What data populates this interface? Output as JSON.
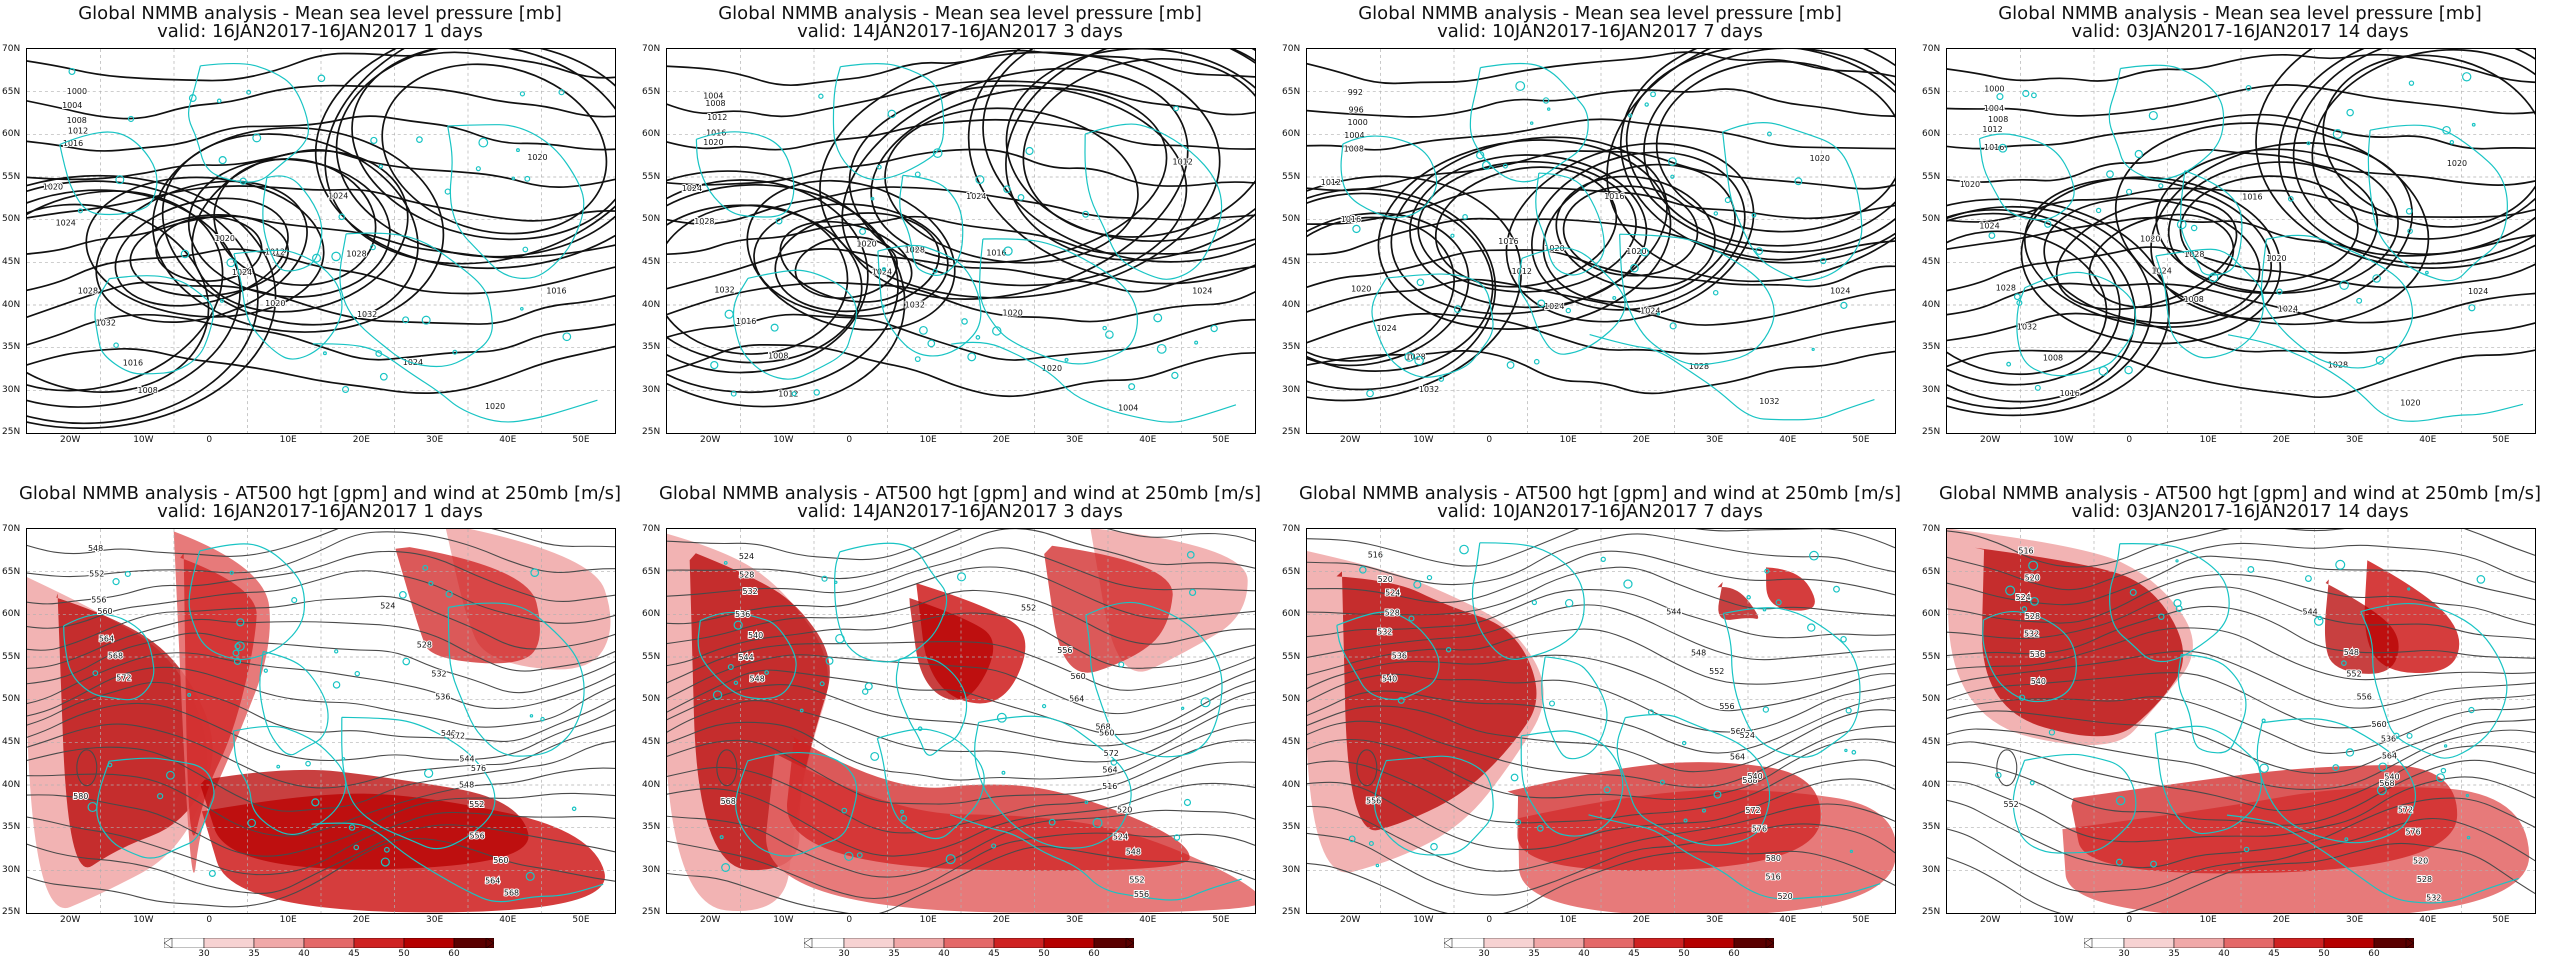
{
  "colors": {
    "coast": "#19c4c4",
    "contour": "#111111",
    "grid": "#b0b0b0",
    "wind_scale": [
      "#ffffff",
      "#f7d2d2",
      "#f0a8a8",
      "#e46868",
      "#cf2222",
      "#b50000",
      "#5a0000"
    ]
  },
  "axes": {
    "lat_labels": [
      "70N",
      "65N",
      "60N",
      "55N",
      "50N",
      "45N",
      "40N",
      "35N",
      "30N",
      "25N"
    ],
    "lon_labels": [
      "20W",
      "10W",
      "0",
      "10E",
      "20E",
      "30E",
      "40E",
      "50E"
    ]
  },
  "panels": [
    {
      "id": "mslp-1",
      "row": 0,
      "col": 0,
      "type": "mslp",
      "title": "Global NMMB analysis - Mean sea level pressure [mb]",
      "subtitle": "valid: 16JAN2017-16JAN2017   1 days",
      "labels": [
        "1000",
        "1004",
        "1008",
        "1012",
        "1016",
        "1020",
        "1024",
        "1028",
        "1032",
        "1016",
        "1008",
        "1020",
        "1024",
        "1012",
        "1020",
        "1024",
        "1028",
        "1032",
        "1024",
        "1020",
        "1020",
        "1016"
      ]
    },
    {
      "id": "mslp-3",
      "row": 0,
      "col": 1,
      "type": "mslp",
      "title": "Global NMMB analysis - Mean sea level pressure [mb]",
      "subtitle": "valid: 14JAN2017-16JAN2017   3 days",
      "labels": [
        "1004",
        "1008",
        "1012",
        "1016",
        "1020",
        "1024",
        "1028",
        "1032",
        "1016",
        "1008",
        "1012",
        "1020",
        "1024",
        "1028",
        "1032",
        "1024",
        "1016",
        "1020",
        "1020",
        "1004",
        "1012",
        "1024"
      ]
    },
    {
      "id": "mslp-7",
      "row": 0,
      "col": 2,
      "type": "mslp",
      "title": "Global NMMB analysis - Mean sea level pressure [mb]",
      "subtitle": "valid: 10JAN2017-16JAN2017   7 days",
      "labels": [
        "992",
        "996",
        "1000",
        "1004",
        "1008",
        "1012",
        "1016",
        "1020",
        "1024",
        "1028",
        "1032",
        "1016",
        "1012",
        "1020",
        "1024",
        "1016",
        "1020",
        "1024",
        "1028",
        "1032",
        "1020",
        "1024"
      ]
    },
    {
      "id": "mslp-14",
      "row": 0,
      "col": 3,
      "type": "mslp",
      "title": "Global NMMB analysis - Mean sea level pressure [mb]",
      "subtitle": "valid: 03JAN2017-16JAN2017   14 days",
      "labels": [
        "1000",
        "1004",
        "1008",
        "1012",
        "1016",
        "1020",
        "1024",
        "1028",
        "1032",
        "1008",
        "1016",
        "1020",
        "1024",
        "1028",
        "1008",
        "1016",
        "1020",
        "1024",
        "1028",
        "1020",
        "1020",
        "1024"
      ]
    },
    {
      "id": "z500-1",
      "row": 1,
      "col": 0,
      "type": "z500",
      "title": "Global NMMB analysis - AT500 hgt [gpm] and wind at 250mb [m/s]",
      "subtitle": "valid: 16JAN2017-16JAN2017   1 days",
      "labels": [
        "548",
        "552",
        "556",
        "560",
        "564",
        "568",
        "572",
        "524",
        "528",
        "532",
        "536",
        "540",
        "544",
        "548",
        "552",
        "556",
        "560",
        "564",
        "568",
        "572",
        "576",
        "580"
      ],
      "colorbar_labels": [
        "30",
        "35",
        "40",
        "45",
        "50",
        "60"
      ]
    },
    {
      "id": "z500-3",
      "row": 1,
      "col": 1,
      "type": "z500",
      "title": "Global NMMB analysis - AT500 hgt [gpm] and wind at 250mb [m/s]",
      "subtitle": "valid: 14JAN2017-16JAN2017   3 days",
      "labels": [
        "524",
        "528",
        "532",
        "536",
        "540",
        "544",
        "548",
        "552",
        "556",
        "560",
        "564",
        "568",
        "572",
        "516",
        "520",
        "524",
        "548",
        "552",
        "556",
        "560",
        "564",
        "568"
      ],
      "colorbar_labels": [
        "30",
        "35",
        "40",
        "45",
        "50",
        "60"
      ]
    },
    {
      "id": "z500-7",
      "row": 1,
      "col": 2,
      "type": "z500",
      "title": "Global NMMB analysis - AT500 hgt [gpm] and wind at 250mb [m/s]",
      "subtitle": "valid: 10JAN2017-16JAN2017   7 days",
      "labels": [
        "516",
        "520",
        "524",
        "528",
        "532",
        "536",
        "540",
        "544",
        "548",
        "552",
        "556",
        "560",
        "564",
        "568",
        "572",
        "576",
        "580",
        "516",
        "520",
        "524",
        "540",
        "556"
      ],
      "colorbar_labels": [
        "30",
        "35",
        "40",
        "45",
        "50",
        "60"
      ]
    },
    {
      "id": "z500-14",
      "row": 1,
      "col": 3,
      "type": "z500",
      "title": "Global NMMB analysis - AT500 hgt [gpm] and wind at 250mb [m/s]",
      "subtitle": "valid: 03JAN2017-16JAN2017   14 days",
      "labels": [
        "516",
        "520",
        "524",
        "528",
        "532",
        "536",
        "540",
        "544",
        "548",
        "552",
        "556",
        "560",
        "564",
        "568",
        "572",
        "576",
        "520",
        "528",
        "532",
        "536",
        "540",
        "552"
      ],
      "colorbar_labels": [
        "30",
        "35",
        "40",
        "45",
        "50",
        "60"
      ]
    }
  ]
}
